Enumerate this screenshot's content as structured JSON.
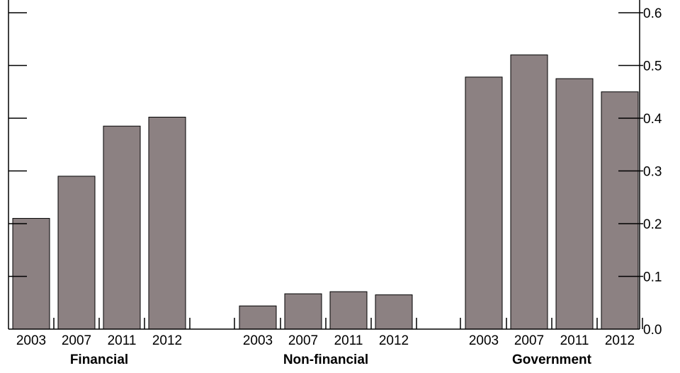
{
  "chart_data": {
    "type": "bar",
    "groups": [
      {
        "name": "Financial",
        "categories": [
          "2003",
          "2007",
          "2011",
          "2012"
        ],
        "values": [
          0.21,
          0.29,
          0.385,
          0.402
        ]
      },
      {
        "name": "Non-financial",
        "categories": [
          "2003",
          "2007",
          "2011",
          "2012"
        ],
        "values": [
          0.044,
          0.067,
          0.071,
          0.065
        ]
      },
      {
        "name": "Government",
        "categories": [
          "2003",
          "2007",
          "2011",
          "2012"
        ],
        "values": [
          0.478,
          0.52,
          0.475,
          0.45
        ]
      }
    ],
    "ylim": [
      0,
      0.6
    ],
    "yticks": [
      "0.0",
      "0.1",
      "0.2",
      "0.3",
      "0.4",
      "0.5",
      "0.6"
    ],
    "y_axis_side": "right",
    "bar_color": "#8c8182",
    "grid": false,
    "legend": "none"
  }
}
